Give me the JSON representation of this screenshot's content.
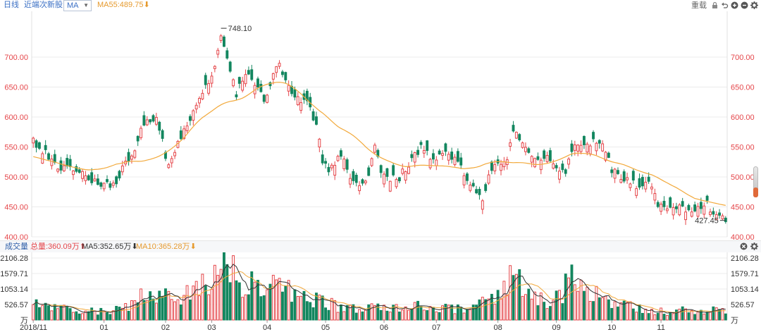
{
  "toolbar": {
    "period": "日线",
    "adjust": "近端次新股",
    "indicator_select": "MA",
    "ma55_label": "MA55:489.75",
    "ma55_arrow": "⬇",
    "reset": "重载"
  },
  "volume_bar": {
    "title": "成交量",
    "total": "总量:360.09万",
    "total_arrow": "⬆",
    "ma5": "MA5:352.65万",
    "ma5_arrow": "⬇",
    "ma10": "MA10:365.28万",
    "ma10_arrow": "⬇"
  },
  "colors": {
    "up": "#e5464a",
    "down": "#13865f",
    "ma55": "#f2a93b",
    "ma5": "#333333",
    "ma10": "#f2a93b",
    "grid": "#ececec",
    "axis_text_red": "#e5464a"
  },
  "chart_data": [
    {
      "type": "candlestick",
      "ylim": [
        400,
        760
      ],
      "yticks": [
        "400.00",
        "450.00",
        "500.00",
        "550.00",
        "600.00",
        "650.00",
        "700.00"
      ],
      "xticks": [
        "2018/11",
        "01",
        "02",
        "03",
        "04",
        "05",
        "06",
        "07",
        "08",
        "09",
        "10",
        "11"
      ],
      "annotations": [
        {
          "label": "748.10",
          "value": 748.1
        },
        {
          "label": "427.45",
          "value": 427.45
        }
      ],
      "anchors": [
        [
          0,
          560
        ],
        [
          8,
          520
        ],
        [
          15,
          505
        ],
        [
          22,
          490
        ],
        [
          26,
          485
        ],
        [
          30,
          525
        ],
        [
          33,
          550
        ],
        [
          36,
          590
        ],
        [
          40,
          600
        ],
        [
          42,
          560
        ],
        [
          44,
          515
        ],
        [
          47,
          560
        ],
        [
          52,
          610
        ],
        [
          56,
          650
        ],
        [
          59,
          680
        ],
        [
          61,
          740
        ],
        [
          63,
          700
        ],
        [
          66,
          640
        ],
        [
          69,
          675
        ],
        [
          72,
          655
        ],
        [
          75,
          630
        ],
        [
          78,
          670
        ],
        [
          80,
          690
        ],
        [
          82,
          660
        ],
        [
          86,
          630
        ],
        [
          89,
          625
        ],
        [
          92,
          590
        ],
        [
          94,
          530
        ],
        [
          96,
          510
        ],
        [
          100,
          535
        ],
        [
          103,
          500
        ],
        [
          106,
          480
        ],
        [
          109,
          500
        ],
        [
          111,
          560
        ],
        [
          113,
          510
        ],
        [
          116,
          495
        ],
        [
          119,
          500
        ],
        [
          123,
          530
        ],
        [
          126,
          550
        ],
        [
          130,
          530
        ],
        [
          134,
          545
        ],
        [
          138,
          520
        ],
        [
          141,
          500
        ],
        [
          144,
          480
        ],
        [
          146,
          455
        ],
        [
          148,
          500
        ],
        [
          150,
          515
        ],
        [
          154,
          525
        ],
        [
          156,
          575
        ],
        [
          158,
          565
        ],
        [
          161,
          540
        ],
        [
          164,
          530
        ],
        [
          167,
          530
        ],
        [
          170,
          520
        ],
        [
          173,
          510
        ],
        [
          176,
          550
        ],
        [
          180,
          555
        ],
        [
          184,
          560
        ],
        [
          186,
          545
        ],
        [
          188,
          510
        ],
        [
          190,
          505
        ],
        [
          192,
          500
        ],
        [
          195,
          490
        ],
        [
          198,
          480
        ],
        [
          200,
          497
        ],
        [
          203,
          455
        ],
        [
          206,
          450
        ],
        [
          210,
          455
        ],
        [
          213,
          440
        ],
        [
          216,
          445
        ],
        [
          219,
          455
        ],
        [
          222,
          435
        ],
        [
          225,
          430
        ]
      ],
      "up_days": [
        0,
        3,
        6,
        8,
        10,
        13,
        16,
        17,
        20,
        23,
        26,
        29,
        30,
        32,
        33,
        35,
        37,
        40,
        44,
        45,
        46,
        47,
        49,
        50,
        52,
        53,
        54,
        55,
        57,
        58,
        59,
        60,
        61,
        65,
        68,
        69,
        72,
        76,
        78,
        79,
        80,
        83,
        86,
        87,
        93,
        97,
        98,
        99,
        101,
        103,
        106,
        108,
        110,
        111,
        114,
        116,
        118,
        120,
        121,
        122,
        124,
        127,
        129,
        131,
        133,
        135,
        137,
        140,
        142,
        146,
        148,
        150,
        152,
        153,
        154,
        155,
        157,
        159,
        160,
        162,
        163,
        165,
        167,
        169,
        171,
        174,
        176,
        177,
        178,
        180,
        181,
        183,
        185,
        186,
        189,
        191,
        193,
        194,
        196,
        199,
        201,
        202,
        204,
        206,
        208,
        210,
        212,
        214,
        216,
        218,
        220,
        222,
        224
      ]
    },
    {
      "type": "bar",
      "name": "成交量",
      "ylim": [
        0,
        2106.28
      ],
      "yticks": [
        "万",
        "526.57",
        "1053.14",
        "1579.71",
        "2106.28"
      ],
      "tick_values": [
        0,
        526.57,
        1053.14,
        1579.71,
        2106.28
      ],
      "volume_anchors": [
        [
          0,
          500
        ],
        [
          6,
          430
        ],
        [
          12,
          360
        ],
        [
          18,
          300
        ],
        [
          24,
          260
        ],
        [
          28,
          350
        ],
        [
          32,
          600
        ],
        [
          36,
          850
        ],
        [
          40,
          900
        ],
        [
          44,
          750
        ],
        [
          48,
          900
        ],
        [
          52,
          1100
        ],
        [
          55,
          1300
        ],
        [
          58,
          1550
        ],
        [
          61,
          1750
        ],
        [
          64,
          1650
        ],
        [
          67,
          1250
        ],
        [
          70,
          1300
        ],
        [
          73,
          1100
        ],
        [
          76,
          1000
        ],
        [
          79,
          1150
        ],
        [
          82,
          1050
        ],
        [
          85,
          900
        ],
        [
          88,
          750
        ],
        [
          92,
          650
        ],
        [
          95,
          550
        ],
        [
          100,
          450
        ],
        [
          105,
          400
        ],
        [
          110,
          480
        ],
        [
          114,
          420
        ],
        [
          118,
          380
        ],
        [
          122,
          450
        ],
        [
          126,
          520
        ],
        [
          130,
          420
        ],
        [
          134,
          380
        ],
        [
          138,
          360
        ],
        [
          142,
          380
        ],
        [
          145,
          650
        ],
        [
          148,
          700
        ],
        [
          151,
          900
        ],
        [
          154,
          1300
        ],
        [
          157,
          1500
        ],
        [
          159,
          1000
        ],
        [
          162,
          800
        ],
        [
          165,
          650
        ],
        [
          168,
          600
        ],
        [
          171,
          750
        ],
        [
          174,
          1300
        ],
        [
          176,
          1550
        ],
        [
          178,
          1200
        ],
        [
          181,
          900
        ],
        [
          184,
          750
        ],
        [
          187,
          550
        ],
        [
          190,
          500
        ],
        [
          193,
          480
        ],
        [
          196,
          400
        ],
        [
          200,
          340
        ],
        [
          204,
          300
        ],
        [
          208,
          260
        ],
        [
          212,
          330
        ],
        [
          216,
          310
        ],
        [
          220,
          330
        ],
        [
          225,
          300
        ]
      ],
      "ma5_last": 352.65,
      "ma10_last": 365.28,
      "total_last": 360.09
    }
  ]
}
